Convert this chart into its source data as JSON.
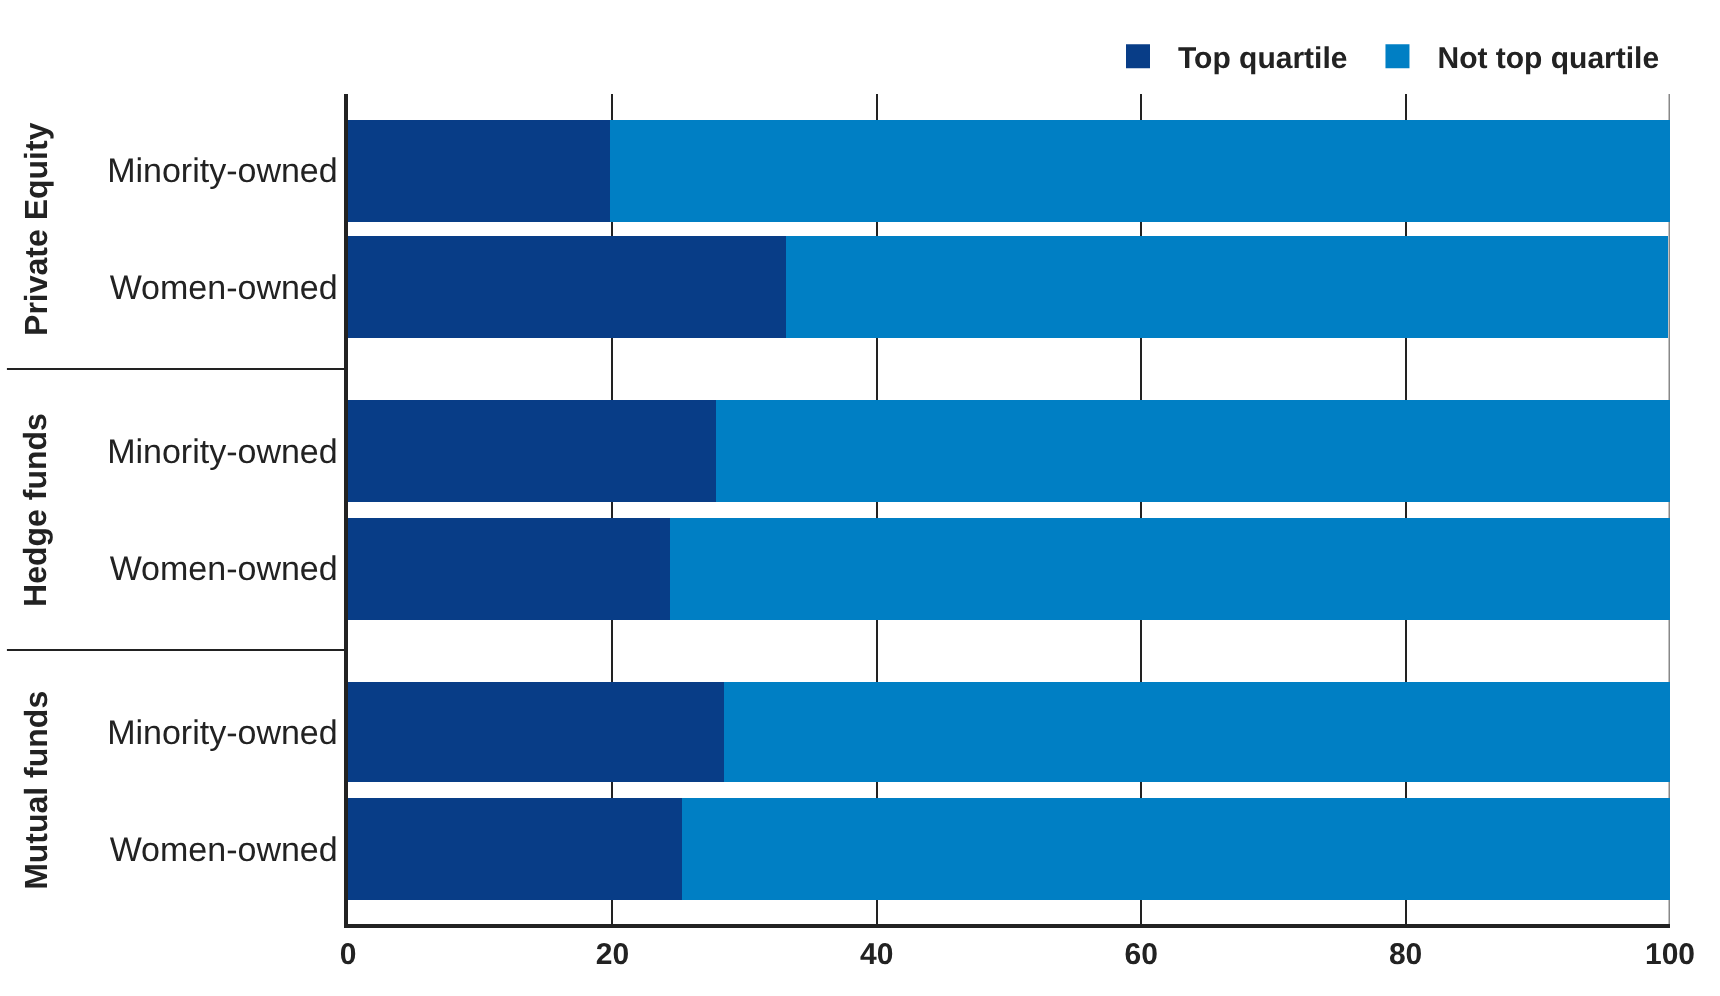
{
  "chart_data": {
    "type": "bar",
    "orientation": "horizontal",
    "stacked": true,
    "categories": [
      "Minority-owned",
      "Women-owned",
      "Minority-owned",
      "Women-owned",
      "Minority-owned",
      "Women-owned"
    ],
    "series": [
      {
        "name": "Top quartile",
        "color": "#083d87",
        "values": [
          19.8,
          33.1,
          27.8,
          24.4,
          28.4,
          25.3
        ]
      },
      {
        "name": "Not top quartile",
        "color": "#007fc4",
        "values": [
          80.2,
          66.7,
          72.2,
          75.6,
          71.6,
          74.7
        ]
      }
    ],
    "annotations": [
      "Private Equity",
      "Hedge funds",
      "Mutual funds"
    ],
    "xlim": [
      0,
      100
    ],
    "xticks": [
      0,
      20,
      40,
      60,
      80,
      100
    ],
    "grid": "x",
    "legend": "top right"
  }
}
